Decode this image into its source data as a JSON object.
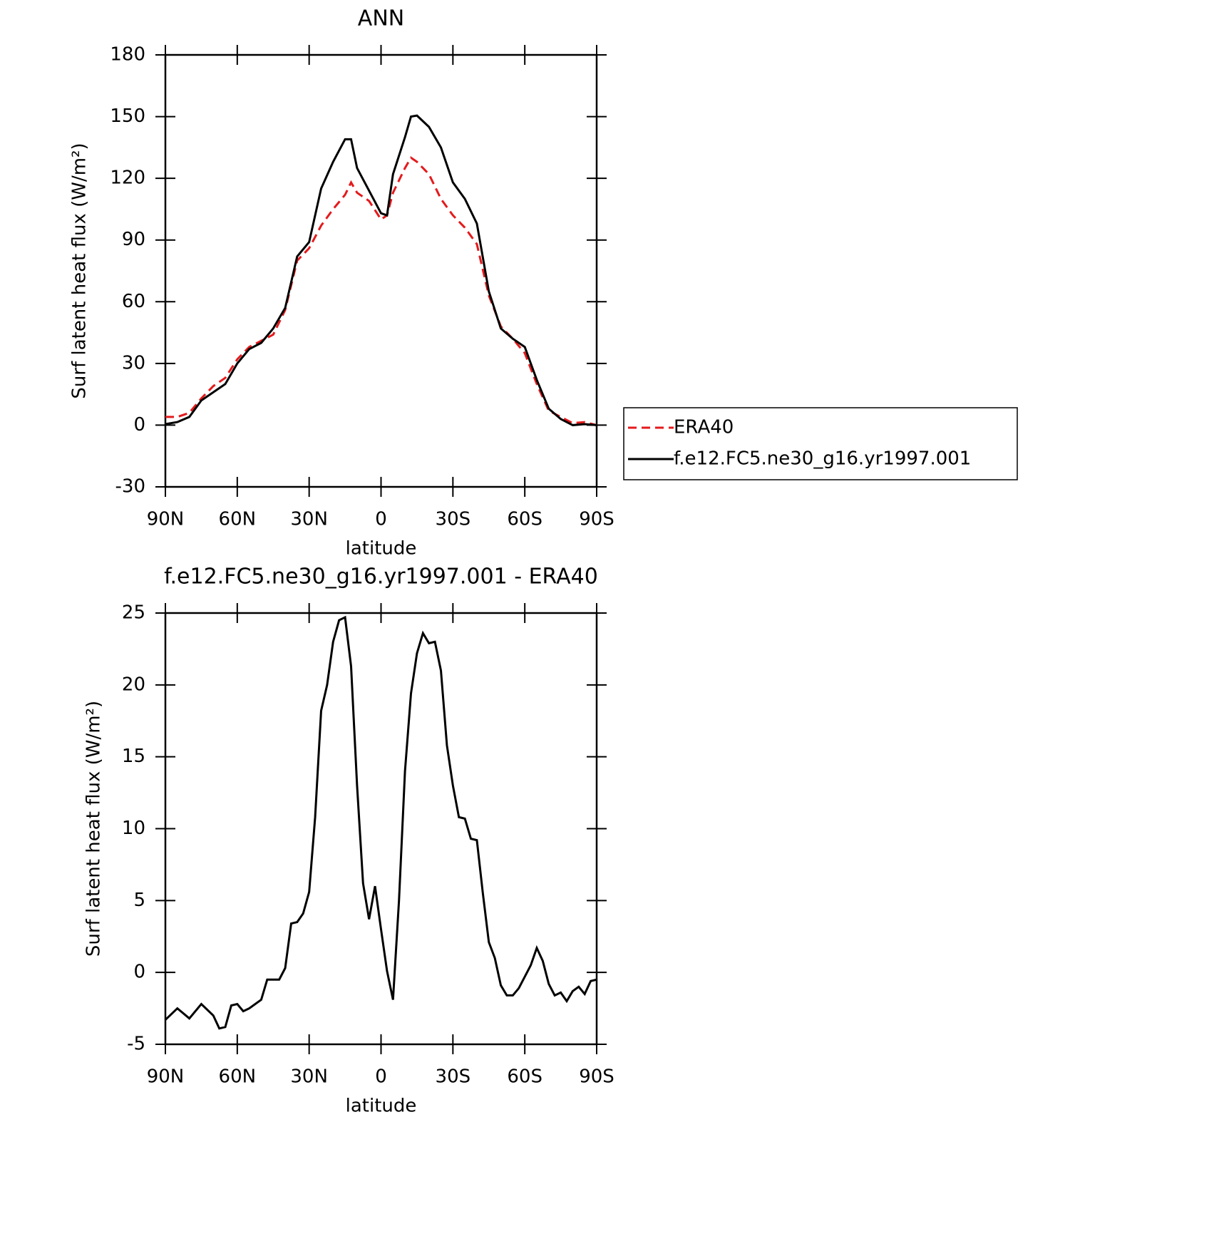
{
  "chart_data": [
    {
      "type": "line",
      "title": "ANN",
      "xlabel": "latitude",
      "ylabel": "Surf latent heat flux (W/m²)",
      "x": [
        90,
        85,
        80,
        75,
        70,
        65,
        60,
        55,
        50,
        45,
        40,
        35,
        30,
        25,
        20,
        15,
        12.5,
        10,
        5,
        0,
        -2.5,
        -5,
        -10,
        -12.5,
        -15,
        -20,
        -25,
        -30,
        -35,
        -40,
        -45,
        -50,
        -55,
        -60,
        -65,
        -70,
        -75,
        -80,
        -85,
        -90
      ],
      "xlim": [
        90,
        -90
      ],
      "xticks": [
        {
          "value": 90,
          "label": "90N"
        },
        {
          "value": 60,
          "label": "60N"
        },
        {
          "value": 30,
          "label": "30N"
        },
        0,
        {
          "value": -30,
          "label": "30S"
        },
        {
          "value": -60,
          "label": "60S"
        },
        {
          "value": -90,
          "label": "90S"
        }
      ],
      "ylim": [
        -30,
        180
      ],
      "yticks": [
        -30,
        0,
        30,
        60,
        90,
        120,
        150,
        180
      ],
      "legend": "right",
      "series": [
        {
          "name": "ERA40",
          "color": "#e41a1c",
          "line_style": "dashed",
          "values": [
            4,
            4,
            6,
            13,
            19,
            23,
            32,
            38,
            41,
            44,
            56,
            80,
            86,
            97,
            105,
            112,
            118,
            113,
            109,
            100,
            102,
            113,
            125,
            130,
            128,
            122,
            110,
            102,
            96,
            88,
            63,
            48,
            42,
            35,
            20,
            7,
            4,
            1,
            1.5,
            0
          ]
        },
        {
          "name": "f.e12.FC5.ne30_g16.yr1997.001",
          "color": "#000000",
          "line_style": "solid",
          "values": [
            0.5,
            1.5,
            4,
            12,
            16,
            20,
            30,
            37,
            40,
            47,
            57,
            82,
            89,
            115,
            128,
            139,
            139,
            125,
            114,
            103,
            102,
            122,
            140,
            150,
            150.5,
            145,
            135,
            118,
            110,
            98,
            65,
            47,
            42,
            38,
            22,
            8,
            3,
            0,
            0.5,
            0
          ]
        }
      ]
    },
    {
      "type": "line",
      "title": "f.e12.FC5.ne30_g16.yr1997.001 - ERA40",
      "xlabel": "latitude",
      "ylabel": "Surf latent heat flux (W/m²)",
      "x": [
        90,
        85,
        80,
        75,
        70,
        67.5,
        65,
        62.5,
        60,
        57.5,
        55,
        50,
        47.5,
        42.5,
        40,
        37.5,
        35,
        32.5,
        30,
        27.5,
        25,
        22.5,
        20,
        17.5,
        15,
        12.5,
        10,
        7.5,
        5,
        2.5,
        0,
        -2.5,
        -5,
        -7.5,
        -10,
        -12.5,
        -15,
        -17.5,
        -20,
        -22.5,
        -25,
        -27.5,
        -30,
        -32.5,
        -35,
        -37.5,
        -40,
        -42.5,
        -45,
        -47.5,
        -50,
        -52.5,
        -55,
        -57.5,
        -60,
        -62.5,
        -65,
        -67.5,
        -70,
        -72.5,
        -75,
        -77.5,
        -80,
        -82.5,
        -85,
        -87.5,
        -90
      ],
      "xlim": [
        90,
        -90
      ],
      "xticks": [
        {
          "value": 90,
          "label": "90N"
        },
        {
          "value": 60,
          "label": "60N"
        },
        {
          "value": 30,
          "label": "30N"
        },
        0,
        {
          "value": -30,
          "label": "30S"
        },
        {
          "value": -60,
          "label": "60S"
        },
        {
          "value": -90,
          "label": "90S"
        }
      ],
      "ylim": [
        -5,
        25
      ],
      "yticks": [
        -5,
        0,
        5,
        10,
        15,
        20,
        25
      ],
      "series": [
        {
          "color": "#000000",
          "line_style": "solid",
          "values": [
            -3.3,
            -2.5,
            -3.2,
            -2.2,
            -3,
            -3.9,
            -3.8,
            -2.3,
            -2.2,
            -2.7,
            -2.5,
            -1.9,
            -0.5,
            -0.5,
            0.3,
            3.4,
            3.5,
            4.1,
            5.6,
            10.8,
            18.2,
            20,
            23,
            24.5,
            24.7,
            21.3,
            13,
            6.2,
            3.7,
            6,
            3,
            0.1,
            -1.9,
            5,
            14,
            19.4,
            22.2,
            23.6,
            22.9,
            23,
            21,
            15.8,
            13,
            10.8,
            10.7,
            9.3,
            9.2,
            5.5,
            2.1,
            1,
            -0.9,
            -1.6,
            -1.6,
            -1.1,
            -0.3,
            0.5,
            1.7,
            0.8,
            -0.8,
            -1.6,
            -1.4,
            -2,
            -1.3,
            -1,
            -1.5,
            -0.6,
            -0.5
          ]
        }
      ]
    }
  ]
}
